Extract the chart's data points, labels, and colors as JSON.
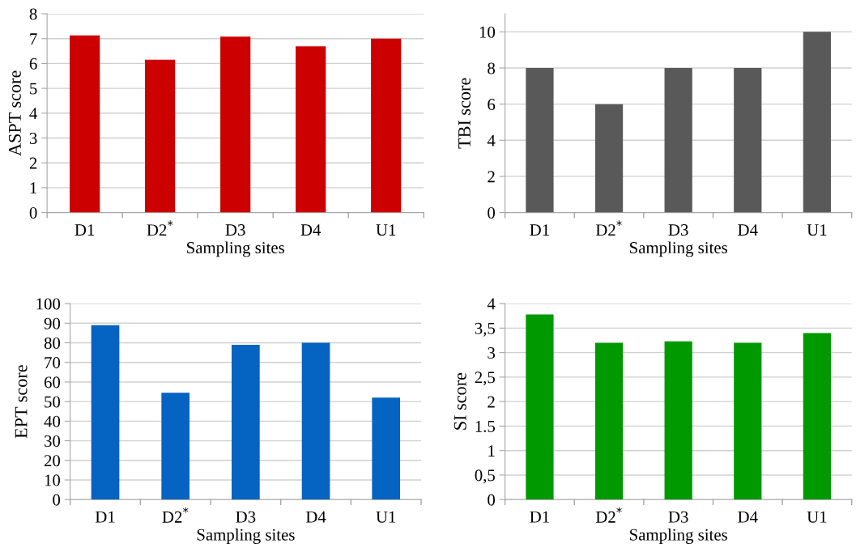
{
  "chart_data": [
    {
      "type": "bar",
      "xlabel": "Sampling sites",
      "ylabel": "ASPT score",
      "categories": [
        "D1",
        "D2$^{*}$",
        "D3",
        "D4",
        "U1"
      ],
      "values": [
        7.13,
        6.15,
        7.08,
        6.69,
        7.0
      ],
      "color": "#cc0000",
      "ylim": [
        0,
        8
      ],
      "yticks": [
        0,
        1,
        2,
        3,
        4,
        5,
        6,
        7,
        8
      ],
      "grid": "y"
    },
    {
      "type": "bar",
      "xlabel": "Sampling sites",
      "ylabel": "TBI score",
      "categories": [
        "D1",
        "D2$^{*}$",
        "D3",
        "D4",
        "U1"
      ],
      "values": [
        8,
        6,
        8,
        8,
        10
      ],
      "color": "#595959",
      "ylim": [
        0,
        11
      ],
      "yticks": [
        0,
        2,
        4,
        6,
        8,
        10
      ],
      "grid": "y"
    },
    {
      "type": "bar",
      "xlabel": "Sampling sites",
      "ylabel": "EPT score",
      "categories": [
        "D1",
        "D2$^{*}$",
        "D3",
        "D4",
        "U1"
      ],
      "values": [
        89,
        54.5,
        79,
        80,
        52
      ],
      "color": "#0563c1",
      "ylim": [
        0,
        100
      ],
      "yticks": [
        0,
        10,
        20,
        30,
        40,
        50,
        60,
        70,
        80,
        90,
        100
      ],
      "grid": "y"
    },
    {
      "type": "bar",
      "xlabel": "Sampling sites",
      "ylabel": "SI score",
      "categories": [
        "D1",
        "D2$^{*}$",
        "D3",
        "D4",
        "U1"
      ],
      "values": [
        3.78,
        3.2,
        3.23,
        3.2,
        3.4
      ],
      "color": "#009900",
      "ylim": [
        0,
        4
      ],
      "yticks": [
        0,
        {
          "value": 0.5,
          "label": "0,5"
        },
        1,
        1.5,
        2,
        {
          "value": 2.5,
          "label": "2,5"
        },
        3,
        {
          "value": 3.5,
          "label": "3,5"
        },
        4
      ],
      "grid": "y"
    }
  ]
}
